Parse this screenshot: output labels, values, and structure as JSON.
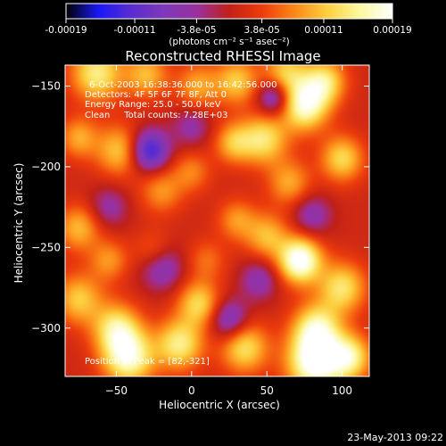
{
  "chart_data": {
    "type": "heatmap",
    "title": "Reconstructed RHESSI Image",
    "xlabel": "Heliocentric X (arcsec)",
    "ylabel": "Heliocentric Y (arcsec)",
    "xlim": [
      -84,
      118
    ],
    "ylim": [
      -330,
      -137
    ],
    "xticks": [
      -50,
      0,
      50,
      100
    ],
    "yticks": [
      -150,
      -200,
      -250,
      -300
    ],
    "colorbar": {
      "range": [
        -0.00019,
        0.00019
      ],
      "tick_values": [
        -0.00019,
        -0.00011,
        -3.8e-05,
        3.8e-05,
        0.00011,
        0.00019
      ],
      "tick_labels": [
        "-0.00019",
        "-0.00011",
        "-3.8e-05",
        "3.8e-05",
        "0.00011",
        "0.00019"
      ],
      "unit_label": "(photons cm⁻² s⁻¹ asec⁻²)",
      "colors": [
        "#000000",
        "#1a18f4",
        "#5a2cd0",
        "#7e38b8",
        "#9a30a0",
        "#c02018",
        "#ec3c0c",
        "#fc8818",
        "#fcd040",
        "#fcf8a0",
        "#ffffff"
      ]
    },
    "annotations": [
      "6-Oct-2003 16:38:36.000 to 16:42:56.000",
      "Detectors: 4F 5F 6F 7F 8F, Att 0",
      "Energy Range: 25.0 - 50.0 keV",
      "Clean     Total counts: 7.28E+03"
    ],
    "peak_label": "Position of Peak = [82,-321]",
    "sources": [
      {
        "x": -63,
        "y": -142,
        "v": 0.00013,
        "w": 12
      },
      {
        "x": -30,
        "y": -143,
        "v": 9e-05,
        "w": 10
      },
      {
        "x": 4,
        "y": -150,
        "v": 8e-05,
        "w": 10
      },
      {
        "x": 30,
        "y": -147,
        "v": 0.0001,
        "w": 10
      },
      {
        "x": 62,
        "y": -142,
        "v": 0.0001,
        "w": 10
      },
      {
        "x": 88,
        "y": -147,
        "v": 0.00012,
        "w": 10
      },
      {
        "x": 75,
        "y": -162,
        "v": 0.00016,
        "w": 11
      },
      {
        "x": 48,
        "y": -183,
        "v": 0.00012,
        "w": 11
      },
      {
        "x": 28,
        "y": -185,
        "v": 9e-05,
        "w": 9
      },
      {
        "x": 100,
        "y": -195,
        "v": 0.00011,
        "w": 10
      },
      {
        "x": 65,
        "y": -210,
        "v": 8e-05,
        "w": 10
      },
      {
        "x": -75,
        "y": -182,
        "v": 8e-05,
        "w": 9
      },
      {
        "x": -48,
        "y": -190,
        "v": 0.0001,
        "w": 11
      },
      {
        "x": -20,
        "y": -215,
        "v": 7e-05,
        "w": 10
      },
      {
        "x": 0,
        "y": -203,
        "v": 6e-05,
        "w": 9
      },
      {
        "x": 30,
        "y": -233,
        "v": 7e-05,
        "w": 9
      },
      {
        "x": 72,
        "y": -258,
        "v": 0.00019,
        "w": 10
      },
      {
        "x": 50,
        "y": -243,
        "v": 9e-05,
        "w": 10
      },
      {
        "x": 100,
        "y": -275,
        "v": 0.00012,
        "w": 11
      },
      {
        "x": -75,
        "y": -238,
        "v": 9e-05,
        "w": 10
      },
      {
        "x": -55,
        "y": -258,
        "v": 7e-05,
        "w": 9
      },
      {
        "x": -75,
        "y": -282,
        "v": 0.0001,
        "w": 11
      },
      {
        "x": -50,
        "y": -300,
        "v": 0.00012,
        "w": 11
      },
      {
        "x": -42,
        "y": -318,
        "v": 0.00016,
        "w": 12
      },
      {
        "x": -8,
        "y": -310,
        "v": 0.00013,
        "w": 11
      },
      {
        "x": 5,
        "y": -285,
        "v": 0.00011,
        "w": 10
      },
      {
        "x": 35,
        "y": -312,
        "v": 0.00012,
        "w": 11
      },
      {
        "x": 82,
        "y": -321,
        "v": 0.00019,
        "w": 13
      },
      {
        "x": 83,
        "y": -300,
        "v": 0.00013,
        "w": 11
      },
      {
        "x": 105,
        "y": -318,
        "v": 0.00013,
        "w": 10
      },
      {
        "x": -25,
        "y": -253,
        "v": 6e-05,
        "w": 9
      },
      {
        "x": 10,
        "y": -258,
        "v": 5e-05,
        "w": 9
      },
      {
        "x": -28,
        "y": -190,
        "v": -0.00015,
        "w": 9
      },
      {
        "x": 55,
        "y": -157,
        "v": -0.00011,
        "w": 8
      },
      {
        "x": 25,
        "y": -295,
        "v": -0.0001,
        "w": 9
      },
      {
        "x": -20,
        "y": -262,
        "v": -9e-05,
        "w": 10
      },
      {
        "x": 0,
        "y": -175,
        "v": -6e-05,
        "w": 9
      },
      {
        "x": 80,
        "y": -230,
        "v": -7e-05,
        "w": 9
      },
      {
        "x": -55,
        "y": -225,
        "v": -6e-05,
        "w": 9
      },
      {
        "x": 45,
        "y": -270,
        "v": -7e-05,
        "w": 9
      }
    ]
  },
  "footer": {
    "date_label": "23-May-2013 09:22"
  }
}
